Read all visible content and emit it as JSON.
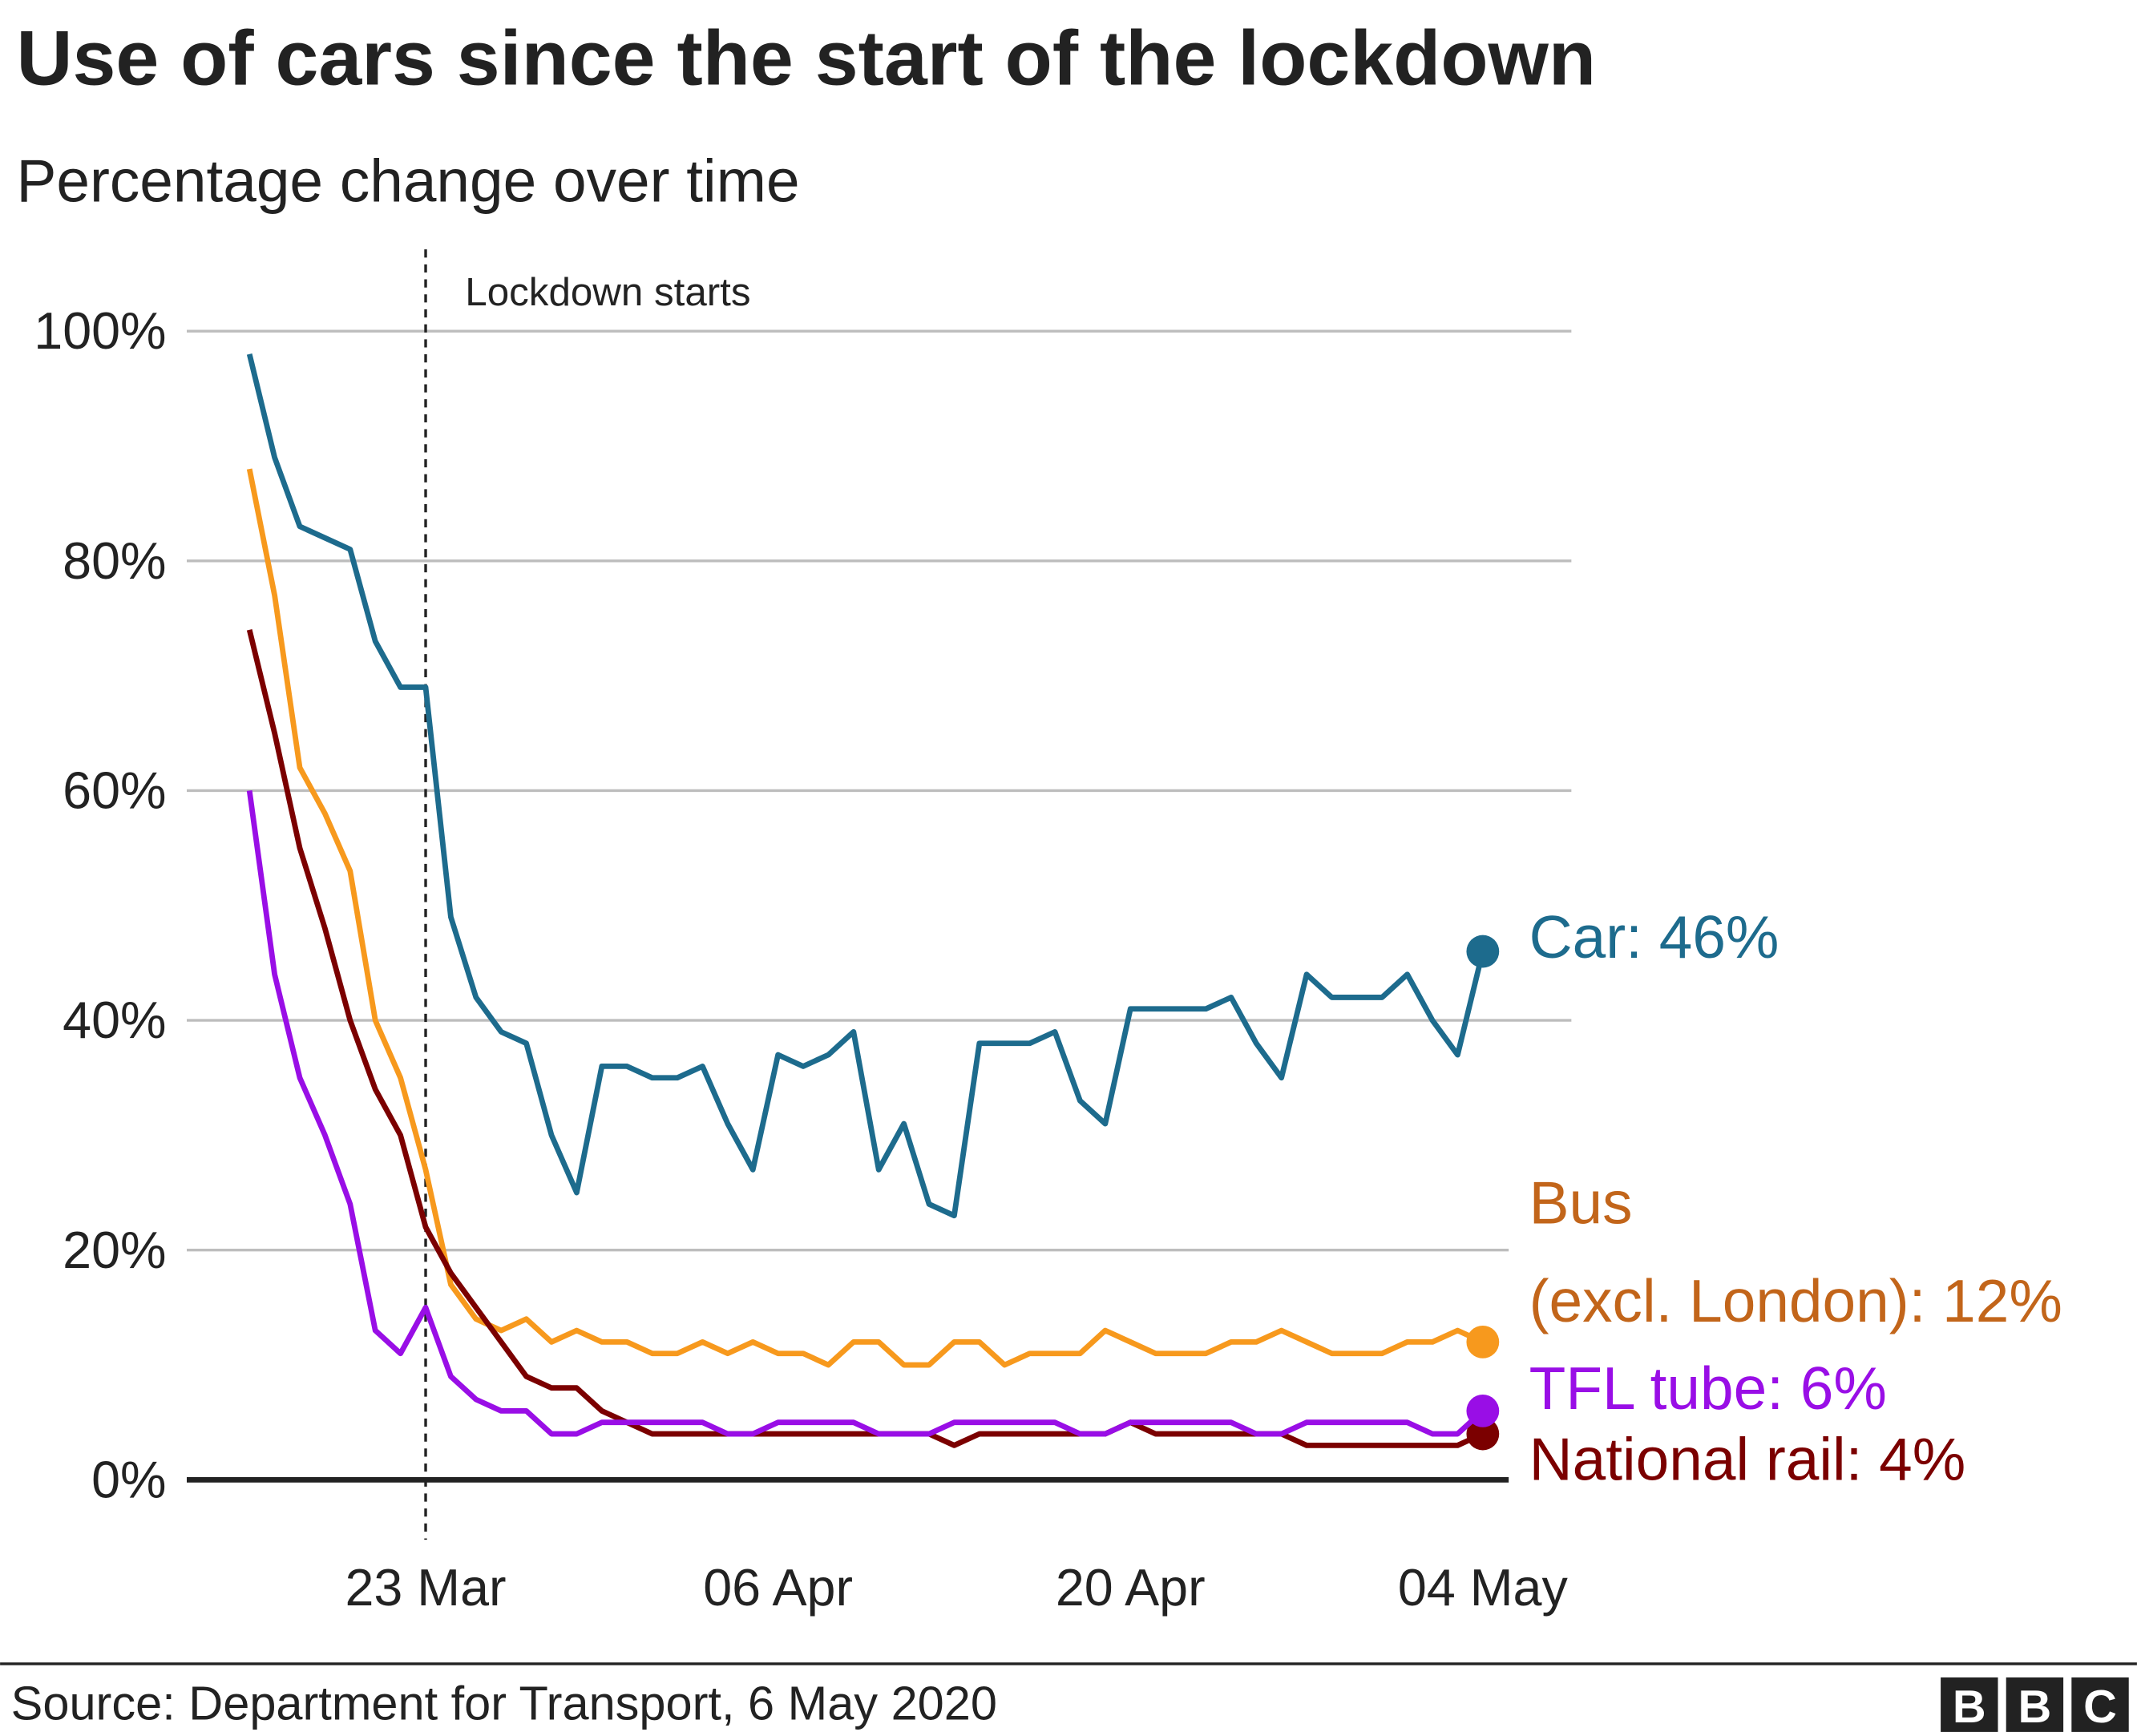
{
  "chart_data": {
    "type": "line",
    "title": "Use of cars since the start of the lockdown",
    "subtitle": "Percentage change over time",
    "categories": [
      null,
      null,
      null,
      null,
      null,
      null,
      null,
      "23 Mar",
      null,
      null,
      null,
      null,
      null,
      null,
      null,
      null,
      null,
      null,
      null,
      null,
      null,
      "06 Apr",
      null,
      null,
      null,
      null,
      null,
      null,
      null,
      null,
      null,
      null,
      null,
      null,
      null,
      "20 Apr",
      null,
      null,
      null,
      null,
      null,
      null,
      null,
      null,
      null,
      null,
      null,
      null,
      null,
      "04 May"
    ],
    "series": [
      {
        "label": [
          "Car: 46%"
        ],
        "color": "#1d6b8d",
        "label_color": "#1d6b8d",
        "values": [
          98,
          89,
          83,
          82,
          81,
          73,
          69,
          69,
          49,
          42,
          39,
          38,
          30,
          25,
          36,
          36,
          35,
          35,
          36,
          31,
          27,
          37,
          36,
          37,
          39,
          27,
          31,
          24,
          23,
          38,
          38,
          38,
          39,
          33,
          31,
          41,
          41,
          41,
          41,
          42,
          38,
          35,
          44,
          42,
          42,
          42,
          44,
          40,
          37,
          46
        ]
      },
      {
        "label": [
          "Bus",
          "(excl. London): 12%"
        ],
        "color": "#f7991d",
        "label_color": "#c2651a",
        "values": [
          88,
          77,
          62,
          58,
          53,
          40,
          35,
          27,
          17,
          14,
          13,
          14,
          12,
          13,
          12,
          12,
          11,
          11,
          12,
          11,
          12,
          11,
          11,
          10,
          12,
          12,
          10,
          10,
          12,
          12,
          10,
          11,
          11,
          11,
          13,
          12,
          11,
          11,
          11,
          12,
          12,
          13,
          12,
          11,
          11,
          11,
          12,
          12,
          13,
          12
        ]
      },
      {
        "label": [
          "TFL tube: 6%"
        ],
        "color": "#990ee6",
        "label_color": "#990ee6",
        "values": [
          60,
          44,
          35,
          30,
          24,
          13,
          11,
          15,
          9,
          7,
          6,
          6,
          4,
          4,
          5,
          5,
          5,
          5,
          5,
          4,
          4,
          5,
          5,
          5,
          5,
          4,
          4,
          4,
          5,
          5,
          5,
          5,
          5,
          4,
          4,
          5,
          5,
          5,
          5,
          5,
          4,
          4,
          5,
          5,
          5,
          5,
          5,
          4,
          4,
          6
        ]
      },
      {
        "label": [
          "National rail: 4%"
        ],
        "color": "#7b0000",
        "label_color": "#7b0000",
        "values": [
          74,
          65,
          55,
          48,
          40,
          34,
          30,
          22,
          18,
          15,
          12,
          9,
          8,
          8,
          6,
          5,
          4,
          4,
          4,
          4,
          4,
          4,
          4,
          4,
          4,
          4,
          4,
          4,
          3,
          4,
          4,
          4,
          4,
          4,
          4,
          5,
          4,
          4,
          4,
          4,
          4,
          4,
          3,
          3,
          3,
          3,
          3,
          3,
          3,
          4
        ]
      }
    ],
    "ylim": [
      0,
      100
    ],
    "yticks": [
      {
        "value": 0,
        "label": "0%"
      },
      {
        "value": 20,
        "label": "20%"
      },
      {
        "value": 40,
        "label": "40%"
      },
      {
        "value": 60,
        "label": "60%"
      },
      {
        "value": 80,
        "label": "80%"
      },
      {
        "value": 100,
        "label": "100%"
      }
    ],
    "grid": true,
    "annotation": {
      "text": "Lockdown starts",
      "category_index": 7
    },
    "source": "Source: Department for Transport, 6 May 2020",
    "logo": [
      "B",
      "B",
      "C"
    ]
  }
}
